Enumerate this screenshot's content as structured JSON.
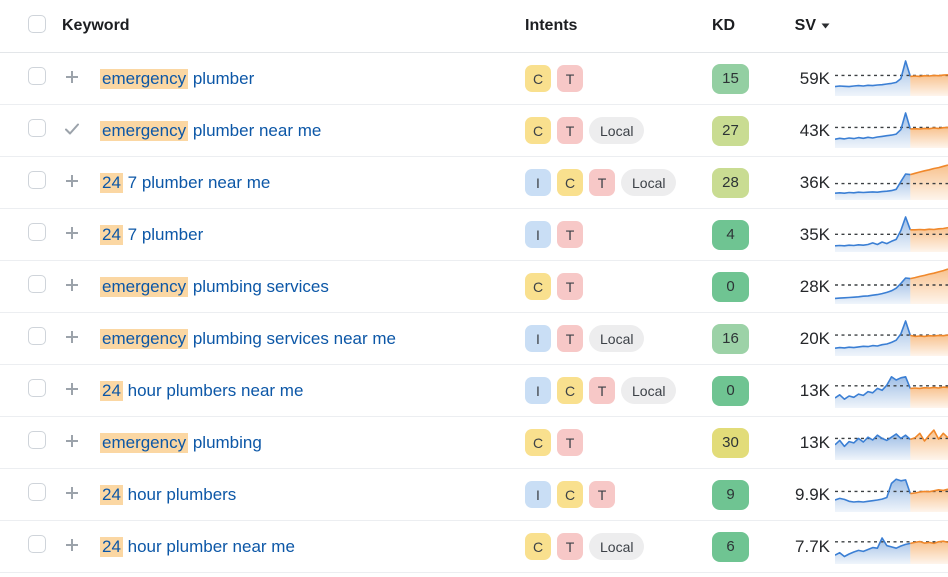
{
  "header": {
    "keyword": "Keyword",
    "intents": "Intents",
    "kd": "KD",
    "sv": "SV",
    "sv_sort": "desc"
  },
  "colors": {
    "link_blue": "#0c57a7",
    "highlight": "#fbd7a3",
    "spark_blue": "#3b7fd4",
    "spark_orange": "#f0882b",
    "row_border": "#eceef1"
  },
  "intent_styles": {
    "I": {
      "bg": "#c9def5",
      "pill": false
    },
    "C": {
      "bg": "#f9e08e",
      "pill": false
    },
    "T": {
      "bg": "#f7c8c7",
      "pill": false
    },
    "Local": {
      "bg": "#ededee",
      "pill": true
    }
  },
  "rows": [
    {
      "added": false,
      "keyword": {
        "highlight": "emergency",
        "rest": " plumber"
      },
      "intents": [
        "C",
        "T"
      ],
      "kd": "15",
      "kd_color": "#93cfa2",
      "sv": "59K",
      "trend": {
        "points": [
          20,
          22,
          21,
          20,
          22,
          23,
          22,
          24,
          23,
          25,
          26,
          28,
          30,
          33,
          45,
          100,
          52,
          53,
          52,
          54,
          53,
          55,
          54,
          56,
          57
        ],
        "split": 16,
        "ref": 55
      }
    },
    {
      "added": true,
      "keyword": {
        "highlight": "emergency",
        "rest": " plumber near me"
      },
      "intents": [
        "C",
        "T",
        "Local"
      ],
      "kd": "27",
      "kd_color": "#c9dc92",
      "sv": "43K",
      "trend": {
        "points": [
          18,
          21,
          19,
          22,
          20,
          23,
          21,
          24,
          22,
          25,
          27,
          29,
          31,
          34,
          48,
          100,
          50,
          51,
          50,
          52,
          51,
          53,
          52,
          54,
          55
        ],
        "split": 16,
        "ref": 55
      }
    },
    {
      "added": false,
      "keyword": {
        "highlight": "24",
        "rest": " 7 plumber near me"
      },
      "intents": [
        "I",
        "C",
        "T",
        "Local"
      ],
      "kd": "28",
      "kd_color": "#c9dc92",
      "sv": "36K",
      "trend": {
        "points": [
          12,
          13,
          12,
          14,
          13,
          15,
          14,
          15,
          16,
          15,
          17,
          18,
          20,
          24,
          48,
          72,
          70,
          74,
          78,
          82,
          85,
          89,
          92,
          96,
          100
        ],
        "split": 16,
        "ref": 42
      }
    },
    {
      "added": false,
      "keyword": {
        "highlight": "24",
        "rest": " 7 plumber"
      },
      "intents": [
        "I",
        "T"
      ],
      "kd": "4",
      "kd_color": "#6fc492",
      "sv": "35K",
      "trend": {
        "points": [
          10,
          11,
          10,
          12,
          11,
          13,
          12,
          14,
          19,
          14,
          22,
          17,
          24,
          30,
          58,
          100,
          60,
          60,
          61,
          60,
          62,
          61,
          63,
          64,
          67
        ],
        "split": 16,
        "ref": 46
      }
    },
    {
      "added": false,
      "keyword": {
        "highlight": "emergency",
        "rest": " plumbing services"
      },
      "intents": [
        "C",
        "T"
      ],
      "kd": "0",
      "kd_color": "#6fc492",
      "sv": "28K",
      "trend": {
        "points": [
          8,
          9,
          10,
          11,
          12,
          13,
          15,
          16,
          18,
          20,
          23,
          27,
          32,
          40,
          55,
          72,
          70,
          73,
          77,
          80,
          84,
          87,
          91,
          95,
          100
        ],
        "split": 16,
        "ref": 50
      }
    },
    {
      "added": false,
      "keyword": {
        "highlight": "emergency",
        "rest": " plumbing services near me"
      },
      "intents": [
        "I",
        "T",
        "Local"
      ],
      "kd": "16",
      "kd_color": "#9cd2a7",
      "sv": "20K",
      "trend": {
        "points": [
          15,
          17,
          16,
          18,
          17,
          19,
          21,
          20,
          23,
          22,
          26,
          28,
          33,
          40,
          60,
          100,
          55,
          52,
          53,
          52,
          54,
          53,
          55,
          54,
          56
        ],
        "split": 16,
        "ref": 56
      }
    },
    {
      "added": false,
      "keyword": {
        "highlight": "24",
        "rest": " hour plumbers near me"
      },
      "intents": [
        "I",
        "C",
        "T",
        "Local"
      ],
      "kd": "0",
      "kd_color": "#6fc492",
      "sv": "13K",
      "trend": {
        "points": [
          22,
          32,
          18,
          28,
          24,
          34,
          30,
          42,
          38,
          52,
          46,
          62,
          88,
          78,
          85,
          88,
          52,
          53,
          52,
          54,
          53,
          55,
          53,
          56,
          55
        ],
        "split": 16,
        "ref": 60
      }
    },
    {
      "added": false,
      "keyword": {
        "highlight": "emergency",
        "rest": " plumbing"
      },
      "intents": [
        "C",
        "T"
      ],
      "kd": "30",
      "kd_color": "#e2dc79",
      "sv": "13K",
      "trend": {
        "points": [
          38,
          52,
          33,
          48,
          44,
          58,
          47,
          62,
          53,
          68,
          58,
          52,
          62,
          72,
          58,
          68,
          55,
          60,
          74,
          50,
          68,
          84,
          56,
          74,
          60
        ],
        "split": 16,
        "ref": 58
      }
    },
    {
      "added": false,
      "keyword": {
        "highlight": "24",
        "rest": " hour plumbers"
      },
      "intents": [
        "I",
        "C",
        "T"
      ],
      "kd": "9",
      "kd_color": "#6fc492",
      "sv": "9.9K",
      "trend": {
        "points": [
          28,
          33,
          30,
          24,
          22,
          23,
          22,
          24,
          26,
          28,
          31,
          36,
          80,
          93,
          88,
          91,
          48,
          50,
          53,
          55,
          54,
          57,
          60,
          58,
          62
        ],
        "split": 16,
        "ref": 55
      }
    },
    {
      "added": false,
      "keyword": {
        "highlight": "24",
        "rest": " hour plumber near me"
      },
      "intents": [
        "C",
        "T",
        "Local"
      ],
      "kd": "6",
      "kd_color": "#6fc492",
      "sv": "7.7K",
      "trend": {
        "points": [
          18,
          26,
          14,
          22,
          28,
          33,
          30,
          36,
          42,
          40,
          72,
          48,
          44,
          40,
          47,
          52,
          55,
          58,
          61,
          56,
          58,
          55,
          60,
          62,
          58
        ],
        "split": 16,
        "ref": 60
      }
    }
  ]
}
